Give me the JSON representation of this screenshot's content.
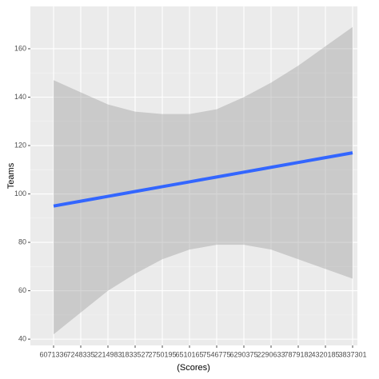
{
  "chart_data": {
    "type": "smooth",
    "x_label": "(Scores)",
    "y_label": "Teams",
    "categories": [
      "6071336",
      "7248335",
      "2214983",
      "1833527",
      "2750195",
      "6510165",
      "7546775",
      "6290375",
      "2290633",
      "7879182",
      "4320185",
      "3837301"
    ],
    "values": [
      95,
      97,
      99,
      101,
      103,
      105,
      107,
      109,
      111,
      113,
      115,
      117
    ],
    "lower": [
      42,
      51,
      60,
      67,
      73,
      77,
      79,
      79,
      77,
      73,
      69,
      65
    ],
    "upper": [
      147,
      142,
      137,
      134,
      133,
      133,
      135,
      140,
      146,
      153,
      161,
      169
    ],
    "color": "#3366ff",
    "band_color": "#999999",
    "ylim": [
      37.4,
      177.5
    ],
    "yticks": [
      40,
      60,
      80,
      100,
      120,
      140,
      160
    ],
    "grid": true
  }
}
